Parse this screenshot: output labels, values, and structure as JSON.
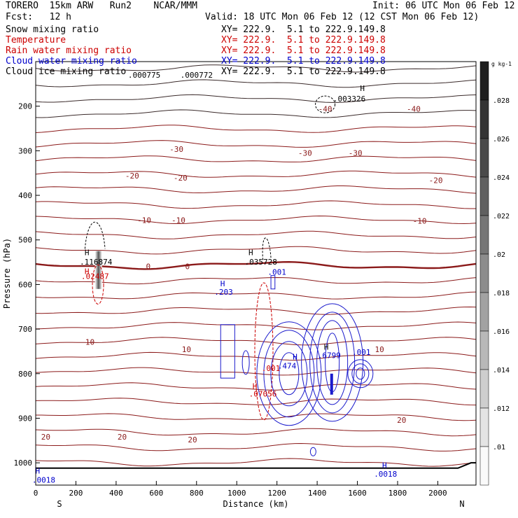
{
  "header": {
    "model": "TORERO  15km ARW   Run2    NCAR/MMM",
    "init": "Init: 06 UTC Mon 06 Feb 12",
    "fcst": "Fcst:   12 h",
    "valid": "Valid: 18 UTC Mon 06 Feb 12 (12 CST Mon 06 Feb 12)"
  },
  "fields": [
    {
      "name": "Snow mixing ratio",
      "xy": "XY= 222.9.  5.1 to 222.9.149.8",
      "color": "#000000"
    },
    {
      "name": "Temperature",
      "xy": "XY= 222.9.  5.1 to 222.9.149.8",
      "color": "#cc0000"
    },
    {
      "name": "Rain water mixing ratio",
      "xy": "XY= 222.9.  5.1 to 222.9.149.8",
      "color": "#cc0000"
    },
    {
      "name": "Cloud water mixing ratio",
      "xy": "XY= 222.9.  5.1 to 222.9.149.8",
      "color": "#0000cc"
    },
    {
      "name": "Cloud ice mixing ratio",
      "xy": "XY= 222.9.  5.1 to 222.9.149.8",
      "color": "#000000"
    }
  ],
  "chart_data": {
    "type": "contour",
    "xlabel": "Distance (km)",
    "ylabel": "Pressure (hPa)",
    "xlim": [
      0,
      2190
    ],
    "ylim": [
      1050,
      100
    ],
    "x_ticks": [
      0,
      200,
      400,
      600,
      800,
      1000,
      1200,
      1400,
      1600,
      1800,
      2000
    ],
    "y_ticks": [
      100,
      200,
      300,
      400,
      500,
      600,
      700,
      800,
      900,
      1000
    ],
    "endpoints": [
      "S",
      "N"
    ],
    "colorbar": {
      "unit": "g kg-1",
      "ticks": [
        ".01",
        ".012",
        ".014",
        ".016",
        ".018",
        ".02",
        ".022",
        ".024",
        ".026",
        ".028"
      ]
    },
    "temperature_labels": [
      {
        "text": "-40",
        "x": 1440,
        "p": 206
      },
      {
        "text": "-40",
        "x": 1880,
        "p": 206
      },
      {
        "text": "-30",
        "x": 700,
        "p": 296
      },
      {
        "text": "-30",
        "x": 1340,
        "p": 305
      },
      {
        "text": "-30",
        "x": 1590,
        "p": 305
      },
      {
        "text": "-20",
        "x": 480,
        "p": 356
      },
      {
        "text": "-20",
        "x": 720,
        "p": 361
      },
      {
        "text": "-20",
        "x": 1990,
        "p": 366
      },
      {
        "text": "-10",
        "x": 540,
        "p": 456
      },
      {
        "text": "-10",
        "x": 710,
        "p": 456
      },
      {
        "text": "-10",
        "x": 1910,
        "p": 457
      },
      {
        "text": "0",
        "x": 560,
        "p": 559
      },
      {
        "text": "0",
        "x": 755,
        "p": 559
      },
      {
        "text": "10",
        "x": 270,
        "p": 729
      },
      {
        "text": "10",
        "x": 750,
        "p": 745
      },
      {
        "text": "10",
        "x": 1710,
        "p": 745
      },
      {
        "text": "20",
        "x": 50,
        "p": 942
      },
      {
        "text": "20",
        "x": 430,
        "p": 942
      },
      {
        "text": "20",
        "x": 780,
        "p": 948
      },
      {
        "text": "20",
        "x": 1820,
        "p": 904
      }
    ],
    "maxima_labels": [
      {
        "text": ".000775",
        "x": 540,
        "p": 130,
        "color": "#000000"
      },
      {
        "text": ".000772",
        "x": 800,
        "p": 130,
        "color": "#000000"
      },
      {
        "text": ".003326",
        "x": 1560,
        "p": 183,
        "color": "#000000"
      },
      {
        "text": ".116874",
        "x": 300,
        "p": 549,
        "color": "#000000"
      },
      {
        "text": ".02487",
        "x": 295,
        "p": 581,
        "color": "#cc0000"
      },
      {
        "text": ".035728",
        "x": 1120,
        "p": 549,
        "color": "#000000"
      },
      {
        "text": ".001",
        "x": 1200,
        "p": 572,
        "color": "#0000cc"
      },
      {
        "text": ".203",
        "x": 935,
        "p": 617,
        "color": "#0000cc"
      },
      {
        "text": ".6799",
        "x": 1460,
        "p": 759,
        "color": "#0000cc"
      },
      {
        "text": ".001",
        "x": 1620,
        "p": 752,
        "color": "#0000cc"
      },
      {
        "text": ".474",
        "x": 1250,
        "p": 782,
        "color": "#0000cc"
      },
      {
        "text": ".001",
        "x": 1170,
        "p": 788,
        "color": "#cc0000"
      },
      {
        "text": ".07056",
        "x": 1130,
        "p": 845,
        "color": "#cc0000"
      },
      {
        "text": ".0018",
        "x": 40,
        "p": 1038,
        "color": "#0000cc"
      },
      {
        "text": ".0018",
        "x": 1740,
        "p": 1025,
        "color": "#0000cc"
      }
    ],
    "h_markers": [
      {
        "x": 1625,
        "p": 160,
        "color": "#000000"
      },
      {
        "x": 255,
        "p": 528,
        "color": "#000000"
      },
      {
        "x": 1070,
        "p": 528,
        "color": "#000000"
      },
      {
        "x": 255,
        "p": 570,
        "color": "#cc0000"
      },
      {
        "x": 930,
        "p": 598,
        "color": "#0000cc"
      },
      {
        "x": 1290,
        "p": 762,
        "color": "#0000cc"
      },
      {
        "x": 1445,
        "p": 740,
        "color": "#000000"
      },
      {
        "x": 1090,
        "p": 828,
        "color": "#cc0000"
      },
      {
        "x": 10,
        "p": 1018,
        "color": "#0000cc"
      },
      {
        "x": 1735,
        "p": 1005,
        "color": "#0000cc"
      }
    ]
  }
}
